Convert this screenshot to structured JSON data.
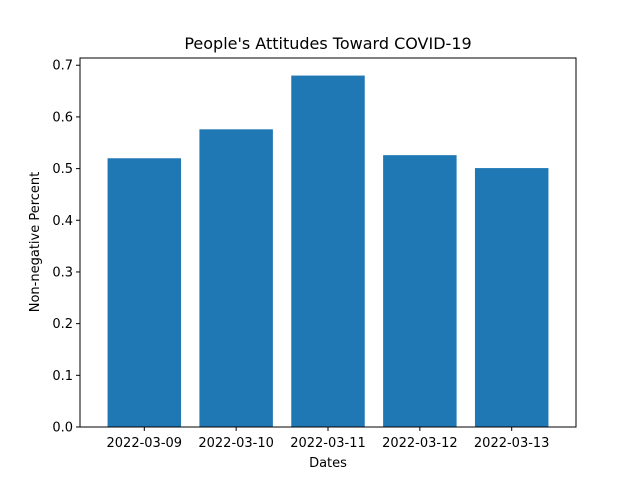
{
  "chart_data": {
    "type": "bar",
    "title": "People's Attitudes Toward COVID-19",
    "xlabel": "Dates",
    "ylabel": "Non-negative Percent",
    "categories": [
      "2022-03-09",
      "2022-03-10",
      "2022-03-11",
      "2022-03-12",
      "2022-03-13"
    ],
    "values": [
      0.52,
      0.576,
      0.68,
      0.526,
      0.501
    ],
    "ylim": [
      0,
      0.714
    ],
    "yticks": [
      "0.0",
      "0.1",
      "0.2",
      "0.3",
      "0.4",
      "0.5",
      "0.6",
      "0.7"
    ],
    "bar_color": "#1f77b4",
    "grid": false,
    "legend": "none"
  }
}
